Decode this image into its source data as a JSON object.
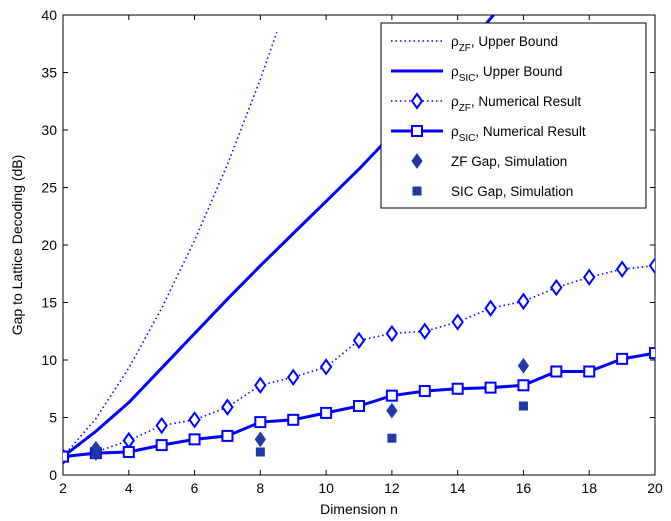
{
  "chart_data": {
    "type": "line",
    "xlabel": "Dimension n",
    "ylabel": "Gap to Lattice Decoding (dB)",
    "xlim": [
      2,
      20
    ],
    "ylim": [
      0,
      40
    ],
    "xticks": [
      2,
      4,
      6,
      8,
      10,
      12,
      14,
      16,
      18,
      20
    ],
    "yticks": [
      0,
      5,
      10,
      15,
      20,
      25,
      30,
      35,
      40
    ],
    "grid": false,
    "legend_position": "top-right",
    "colors": {
      "series": "#0000ff",
      "simulation": "#1f3aa8"
    },
    "series": [
      {
        "id": "zf_upper",
        "name_main": "ρ",
        "name_sub": "ZF",
        "name_rest": ", Upper Bound",
        "style": "dotted",
        "marker": "none",
        "x": [
          2,
          3,
          4,
          5,
          6,
          7,
          8,
          8.5
        ],
        "y": [
          1.6,
          4.9,
          9.3,
          14.5,
          20.4,
          27.0,
          34.4,
          38.5
        ]
      },
      {
        "id": "sic_upper",
        "name_main": "ρ",
        "name_sub": "SIC",
        "name_rest": ", Upper Bound",
        "style": "solid",
        "marker": "none",
        "x": [
          2,
          3,
          4,
          5,
          6,
          7,
          8,
          9,
          10,
          11,
          12,
          13,
          14,
          15,
          15.3
        ],
        "y": [
          1.6,
          3.8,
          6.3,
          9.3,
          12.3,
          15.3,
          18.2,
          21.0,
          23.8,
          26.6,
          29.6,
          32.9,
          36.3,
          39.7,
          40.7
        ]
      },
      {
        "id": "zf_numerical",
        "name_main": "ρ",
        "name_sub": "ZF",
        "name_rest": ", Numerical Result",
        "style": "dotted",
        "marker": "diamond-open",
        "x": [
          2,
          3,
          4,
          5,
          6,
          7,
          8,
          9,
          10,
          11,
          12,
          13,
          14,
          15,
          16,
          17,
          18,
          19,
          20
        ],
        "y": [
          1.6,
          2.0,
          3.0,
          4.3,
          4.8,
          5.9,
          7.8,
          8.5,
          9.4,
          11.7,
          12.3,
          12.5,
          13.3,
          14.5,
          15.1,
          16.3,
          17.2,
          17.9,
          18.2
        ]
      },
      {
        "id": "sic_numerical",
        "name_main": "ρ",
        "name_sub": "SIC",
        "name_rest": ", Numerical Result",
        "style": "solid",
        "marker": "square-open",
        "x": [
          2,
          3,
          4,
          5,
          6,
          7,
          8,
          9,
          10,
          11,
          12,
          13,
          14,
          15,
          16,
          17,
          18,
          19,
          20
        ],
        "y": [
          1.6,
          1.9,
          2.0,
          2.6,
          3.1,
          3.4,
          4.6,
          4.8,
          5.4,
          6.0,
          6.9,
          7.3,
          7.5,
          7.6,
          7.8,
          9.0,
          9.0,
          10.1,
          10.6
        ]
      },
      {
        "id": "zf_sim",
        "name_main": "ZF Gap, Simulation",
        "name_sub": "",
        "name_rest": "",
        "style": "none",
        "marker": "diamond-filled",
        "x": [
          3,
          8,
          12,
          16
        ],
        "y": [
          2.3,
          3.1,
          5.6,
          9.5
        ]
      },
      {
        "id": "sic_sim",
        "name_main": "SIC Gap, Simulation",
        "name_sub": "",
        "name_rest": "",
        "style": "none",
        "marker": "square-filled",
        "x": [
          3,
          8,
          12,
          16
        ],
        "y": [
          1.8,
          2.0,
          3.2,
          6.0
        ]
      }
    ]
  }
}
